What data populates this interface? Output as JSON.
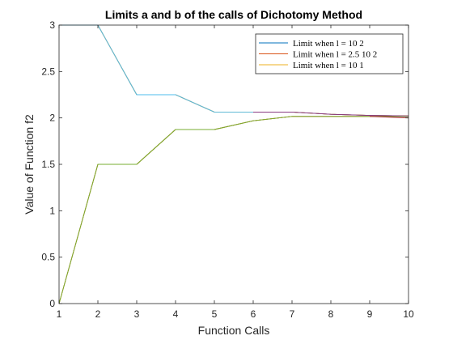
{
  "chart_data": {
    "type": "line",
    "title": "Limits a and b of the calls of Dichotomy Method",
    "xlabel": "Function Calls",
    "ylabel": "Value of Function f2",
    "xlim": [
      1,
      10
    ],
    "ylim": [
      0,
      3
    ],
    "xticks": [
      "1",
      "2",
      "3",
      "4",
      "5",
      "6",
      "7",
      "8",
      "9",
      "10"
    ],
    "yticks": [
      "0",
      "0.5",
      "1",
      "1.5",
      "2",
      "2.5",
      "3"
    ],
    "legend_position": "top-right",
    "grid": false,
    "legend": [
      {
        "label": "Limit when l = 10  2",
        "color": "#0072bd"
      },
      {
        "label": "Limit when l = 2.5 10  2",
        "color": "#d95319"
      },
      {
        "label": "Limit when l = 10  1",
        "color": "#edb120"
      }
    ],
    "series": [
      {
        "role": "lower-limit",
        "color": "#0072bd",
        "x": [
          1,
          2,
          3,
          4,
          5,
          6,
          7,
          8,
          9,
          10
        ],
        "y": [
          0,
          1.5,
          1.5,
          1.875,
          1.875,
          1.969,
          2.016,
          2.016,
          2.016,
          2.016
        ]
      },
      {
        "role": "upper-limit",
        "color": "#0072bd",
        "x": [
          1,
          2,
          3,
          4,
          5,
          6,
          7,
          8,
          9,
          10
        ],
        "y": [
          3,
          3,
          2.25,
          2.25,
          2.063,
          2.063,
          2.063,
          2.039,
          2.027,
          2.022
        ]
      },
      {
        "role": "lower-limit",
        "color": "#d95319",
        "x": [
          1,
          2,
          3,
          4,
          5,
          6,
          7,
          8,
          9,
          10
        ],
        "y": [
          0,
          1.5,
          1.5,
          1.875,
          1.875,
          1.969,
          2.016,
          2.016,
          2.016,
          2.016
        ]
      },
      {
        "role": "upper-limit",
        "color": "#d95319",
        "x": [
          1,
          2,
          3,
          4,
          5,
          6,
          7,
          8,
          9,
          10
        ],
        "y": [
          3,
          3,
          2.25,
          2.25,
          2.063,
          2.063,
          2.063,
          2.039,
          2.027,
          2.022
        ]
      },
      {
        "role": "lower-limit",
        "color": "#edb120",
        "x": [
          1,
          2,
          3,
          4,
          5,
          6,
          7,
          8,
          9,
          10
        ],
        "y": [
          0,
          1.5,
          1.5,
          1.875,
          1.875,
          1.969,
          2.016,
          2.016,
          2.016,
          2.016
        ]
      },
      {
        "role": "upper-limit",
        "color": "#edb120",
        "x": [
          1,
          2,
          3,
          4,
          5,
          6,
          7,
          8,
          9,
          10
        ],
        "y": [
          3,
          3,
          2.25,
          2.25,
          2.063,
          2.063,
          2.063,
          2.039,
          2.027,
          2.022
        ]
      },
      {
        "role": "lower-limit",
        "color": "#77ac30",
        "x": [
          1,
          2,
          3,
          4,
          5,
          6,
          7,
          8,
          9,
          10
        ],
        "y": [
          0,
          1.5,
          1.5,
          1.875,
          1.875,
          1.969,
          2.016,
          2.016,
          2.016,
          2.016
        ]
      },
      {
        "role": "upper-limit",
        "color": "#4dbeee",
        "x": [
          1,
          2,
          3,
          4,
          5,
          6
        ],
        "y": [
          3,
          3,
          2.25,
          2.25,
          2.063,
          2.063
        ]
      },
      {
        "role": "upper-limit",
        "color": "#7e2f8e",
        "x": [
          6,
          7,
          8,
          9,
          10
        ],
        "y": [
          2.063,
          2.063,
          2.039,
          2.027,
          2.022
        ]
      },
      {
        "role": "tail",
        "color": "#a2142f",
        "x": [
          9,
          10
        ],
        "y": [
          2.016,
          2.0
        ]
      }
    ]
  }
}
